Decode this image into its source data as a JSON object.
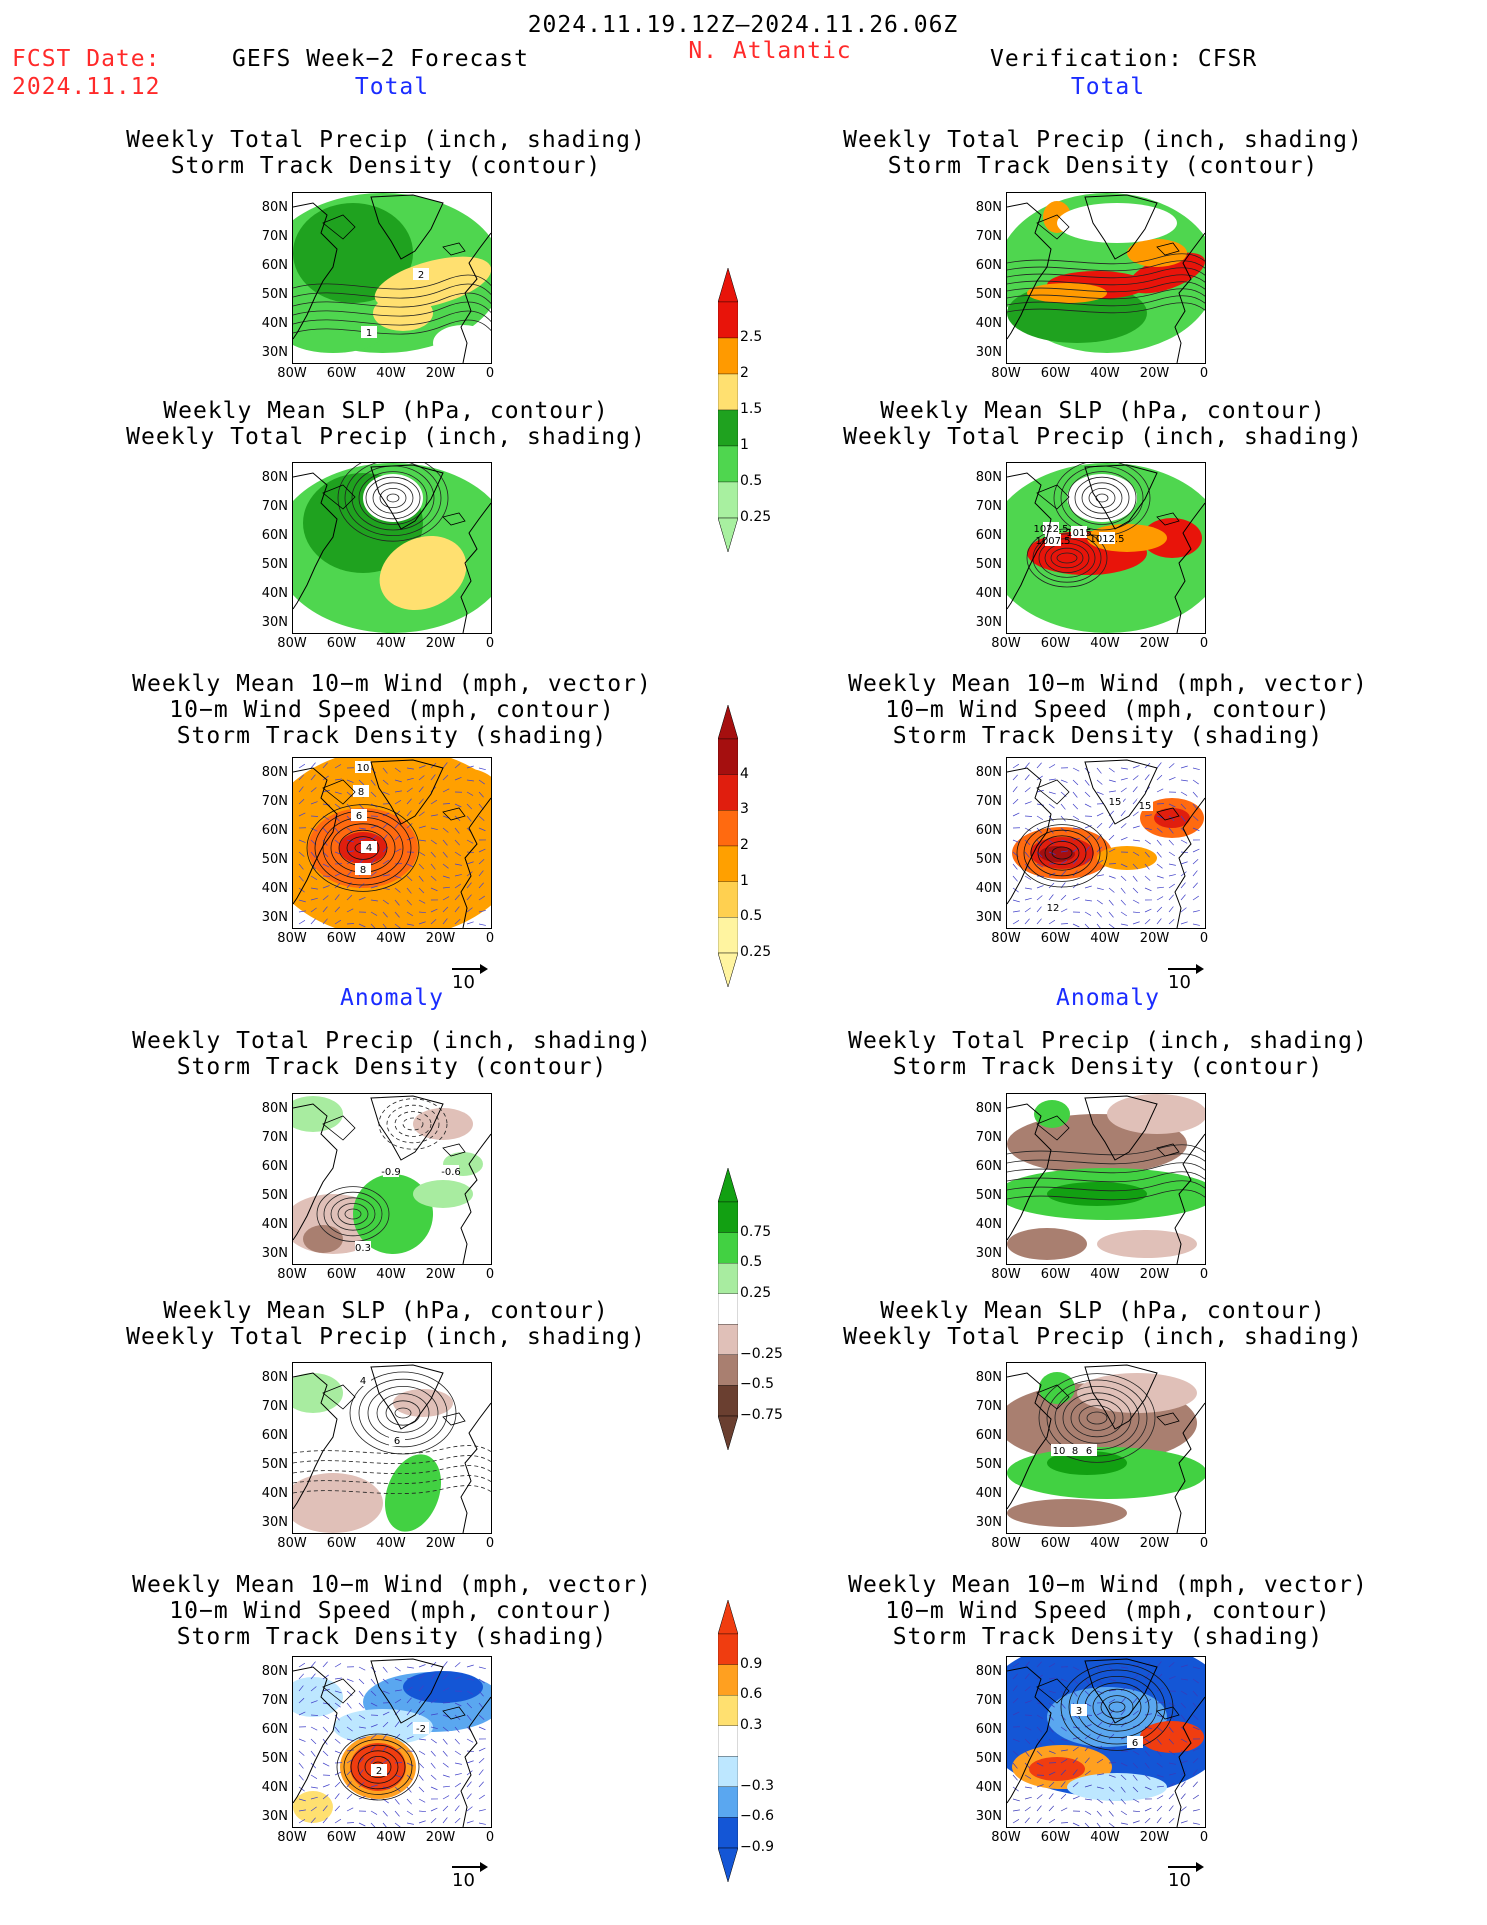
{
  "header": {
    "date_range": "2024.11.19.12Z—2024.11.26.06Z",
    "fcst_label": "FCST Date:",
    "fcst_date": "2024.11.12",
    "model": "GEFS Week−2 Forecast",
    "region": "N. Atlantic",
    "verification": "Verification: CFSR"
  },
  "sections": {
    "total": "Total",
    "anomaly": "Anomaly"
  },
  "titles": {
    "precip_track": [
      "Weekly Total Precip (inch, shading)",
      "Storm Track Density (contour)"
    ],
    "slp_precip": [
      "Weekly Mean SLP (hPa, contour)",
      "Weekly Total Precip (inch, shading)"
    ],
    "wind": [
      "Weekly Mean 10−m Wind (mph, vector)",
      "10−m Wind Speed (mph, contour)",
      "Storm Track Density (shading)"
    ]
  },
  "axes": {
    "lat_ticks": [
      "80N",
      "70N",
      "60N",
      "50N",
      "40N",
      "30N"
    ],
    "lon_ticks": [
      "80W",
      "60W",
      "40W",
      "20W",
      "0"
    ]
  },
  "vector_ref": "10",
  "colorbars": {
    "precip_total": {
      "labels": [
        "2.5",
        "2",
        "1.5",
        "1",
        "0.5",
        "0.25"
      ],
      "colors": [
        "#e8140a",
        "#ff9a00",
        "#ffe070",
        "#1fa21f",
        "#4fd64f",
        "#a8f0a0"
      ]
    },
    "track_total": {
      "labels": [
        "4",
        "3",
        "2",
        "1",
        "0.5",
        "0.25"
      ],
      "colors": [
        "#a50f0f",
        "#e01e0e",
        "#ff6a10",
        "#ffa000",
        "#ffd050",
        "#fff4a0"
      ]
    },
    "precip_anom": {
      "labels": [
        "0.75",
        "0.5",
        "0.25",
        "−0.25",
        "−0.5",
        "−0.75"
      ],
      "colors": [
        "#12a012",
        "#42d142",
        "#a8eca0",
        "#ffffff",
        "#e0c0b8",
        "#a97f70",
        "#6a3f30"
      ]
    },
    "track_anom": {
      "labels": [
        "0.9",
        "0.6",
        "0.3",
        "−0.3",
        "−0.6",
        "−0.9"
      ],
      "colors": [
        "#f03d10",
        "#ffa020",
        "#ffe070",
        "#ffffff",
        "#bde7ff",
        "#5aa7f0",
        "#1456d6"
      ]
    }
  },
  "panel_labels": {
    "f1": [
      "2",
      "1"
    ],
    "f3": [
      "10",
      "8",
      "6",
      "4",
      "8"
    ],
    "f4": [
      "-0.9",
      "-0.6",
      "0.3"
    ],
    "f5": [
      "4",
      "6"
    ],
    "f6": [
      "-2",
      "2"
    ],
    "v2": [
      "1022.5",
      "1015",
      "1007.5",
      "1012.5"
    ],
    "v3": [
      "15",
      "15",
      "12"
    ],
    "v5": [
      "10",
      "8",
      "6"
    ],
    "v6": [
      "3",
      "6"
    ]
  }
}
